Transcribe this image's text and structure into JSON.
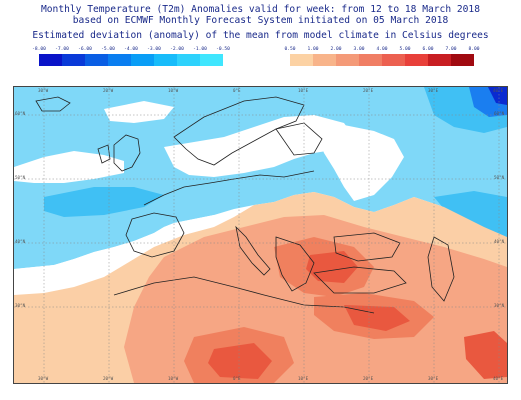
{
  "title": {
    "line1": "Monthly Temperature (T2m) Anomalies valid for week: from 12 to 18 March 2018",
    "line2": "based on ECMWF Monthly Forecast System initiated on 05 March 2018",
    "line3": "Estimated deviation (anomaly) of the mean from model climate in Celsius degrees"
  },
  "legend_negative": {
    "labels": [
      "-8.00",
      "-7.00",
      "-6.00",
      "-5.00",
      "-4.00",
      "-3.00",
      "-2.00",
      "-1.00",
      "-0.50"
    ],
    "colors": [
      "#0a14c8",
      "#0a3ad8",
      "#0a5ee4",
      "#0a7ef0",
      "#0a9ef6",
      "#18bcfa",
      "#2ed2fc",
      "#40e6fe"
    ]
  },
  "legend_positive": {
    "labels": [
      "0.50",
      "1.00",
      "2.00",
      "3.00",
      "4.00",
      "5.00",
      "6.00",
      "7.00",
      "8.00"
    ],
    "colors": [
      "#fcd2a4",
      "#f8b48a",
      "#f49a78",
      "#f07e64",
      "#ec6050",
      "#e8403a",
      "#c81e22",
      "#a00a10"
    ]
  },
  "map": {
    "lat_labels_left": [
      "60°N",
      "50°N",
      "40°N",
      "30°N"
    ],
    "lat_labels_right": [
      "60°N",
      "50°N",
      "40°N",
      "30°N"
    ],
    "lon_labels_top": [
      "30°W",
      "20°W",
      "10°W",
      "0°E",
      "10°E",
      "20°E",
      "30°E",
      "40°E"
    ],
    "lon_labels_bottom": [
      "30°W",
      "20°W",
      "10°W",
      "0°E",
      "10°E",
      "20°E",
      "30°E",
      "40°E"
    ],
    "colors": {
      "cold_light": "#7fd8f8",
      "cold_mid": "#40c0f4",
      "cold_deep": "#1a7ef0",
      "cold_deepest": "#0a2ad0",
      "warm_light": "#fbcfa6",
      "warm_mid": "#f6a684",
      "warm_deep": "#f0805e",
      "warm_hot": "#e9583f",
      "neutral": "#ffffff",
      "coast": "#222222",
      "grid": "#888888"
    }
  }
}
